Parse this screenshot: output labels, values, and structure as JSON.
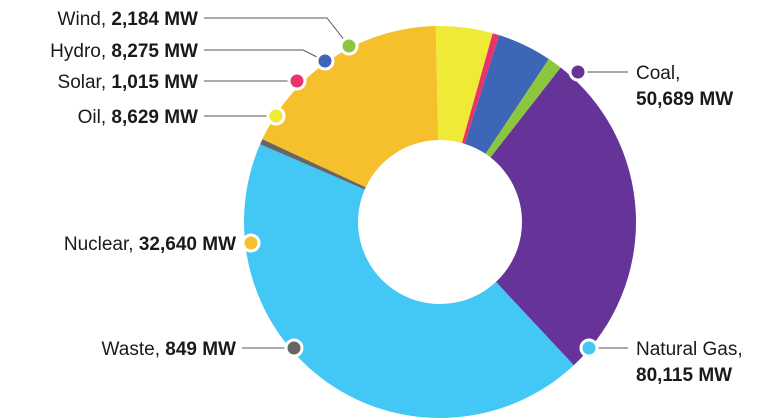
{
  "chart_data": {
    "type": "pie",
    "variant": "donut",
    "categories": [
      "Coal",
      "Natural Gas",
      "Waste",
      "Nuclear",
      "Oil",
      "Solar",
      "Hydro",
      "Wind"
    ],
    "values": [
      50689,
      80115,
      849,
      32640,
      8629,
      1015,
      8275,
      2184
    ],
    "value_labels": [
      "50,689 MW",
      "80,115 MW",
      "849 MW",
      "32,640 MW",
      "8,629 MW",
      "1,015 MW",
      "8,275 MW",
      "2,184 MW"
    ],
    "unit": "MW",
    "colors": [
      "#663399",
      "#43C7F4",
      "#666666",
      "#F5C02B",
      "#EFEA36",
      "#E8336B",
      "#3D66B6",
      "#8CC63F"
    ],
    "title": "",
    "legend": "none"
  }
}
